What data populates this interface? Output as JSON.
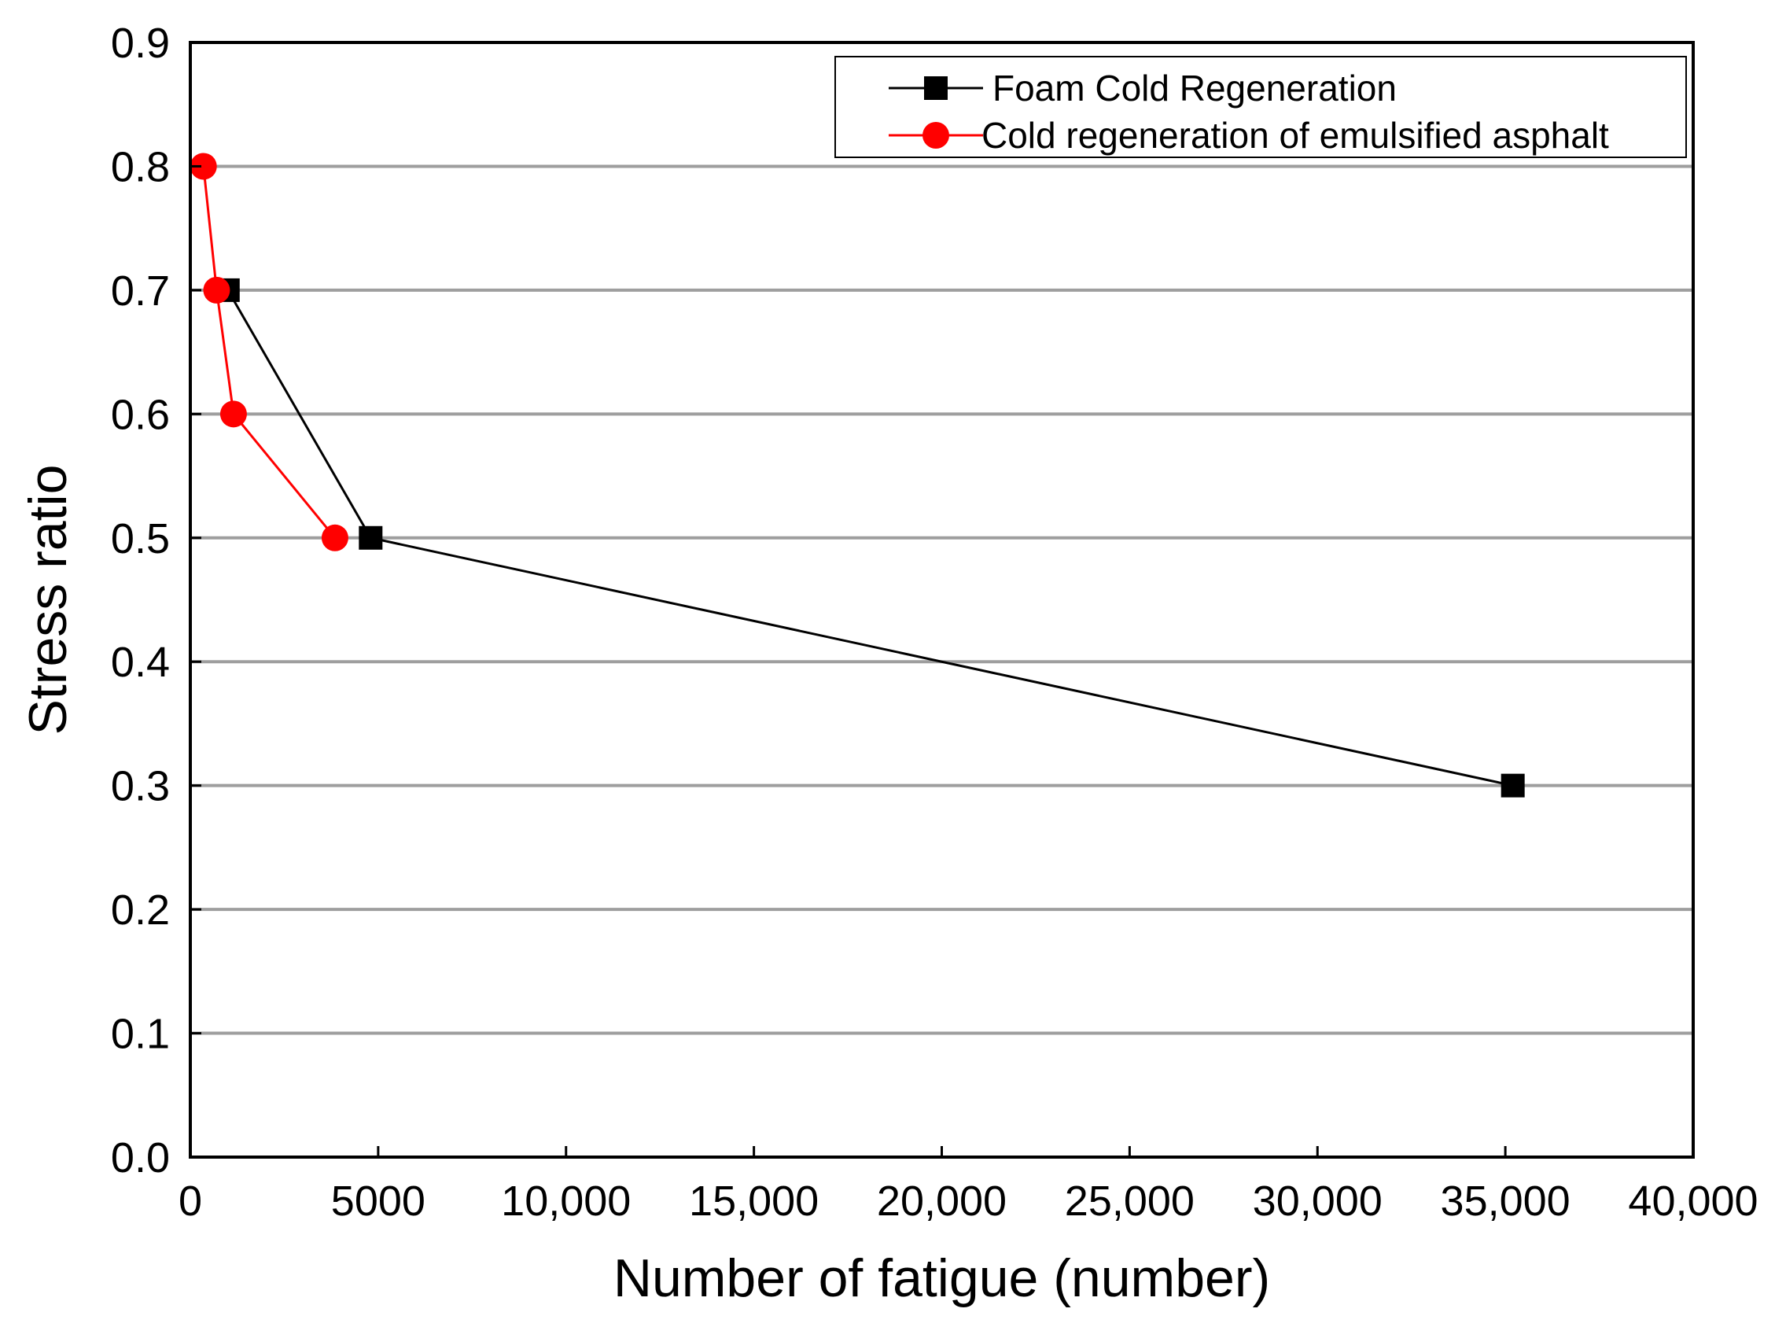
{
  "chart_data": {
    "type": "line",
    "title": "",
    "xlabel": "Number of fatigue (number)",
    "ylabel": "Stress ratio",
    "xlim": [
      0,
      40000
    ],
    "ylim": [
      0,
      0.9
    ],
    "x_ticks": [
      0,
      5000,
      10000,
      15000,
      20000,
      25000,
      30000,
      35000,
      40000
    ],
    "x_tick_labels": [
      "0",
      "5000",
      "10,000",
      "15,000",
      "20,000",
      "25,000",
      "30,000",
      "35,000",
      "40,000"
    ],
    "y_ticks": [
      0,
      0.1,
      0.2,
      0.3,
      0.4,
      0.5,
      0.6,
      0.7,
      0.8,
      0.9
    ],
    "y_tick_labels": [
      "0.0",
      "0.1",
      "0.2",
      "0.3",
      "0.4",
      "0.5",
      "0.6",
      "0.7",
      "0.8",
      "0.9"
    ],
    "grid": "horizontal",
    "legend_position": "top-right",
    "series": [
      {
        "name": "Foam Cold Regeneration",
        "marker": "square",
        "color": "#000000",
        "x": [
          1000,
          4800,
          35200
        ],
        "y": [
          0.7,
          0.5,
          0.3
        ]
      },
      {
        "name": "Cold regeneration of emulsified asphalt",
        "marker": "circle",
        "color": "#ff0000",
        "x": [
          350,
          700,
          1150,
          3850
        ],
        "y": [
          0.8,
          0.7,
          0.6,
          0.5
        ]
      }
    ]
  }
}
